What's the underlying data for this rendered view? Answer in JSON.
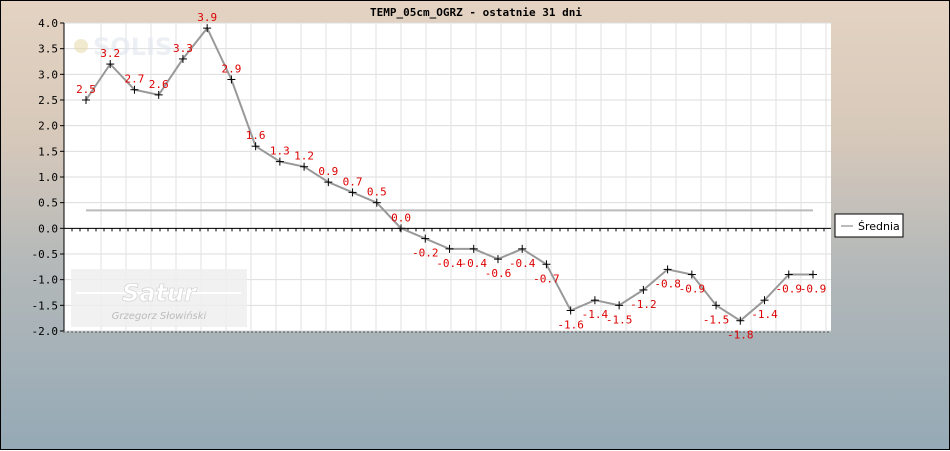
{
  "chart_data": {
    "type": "line",
    "title": "TEMP_05cm_OGRZ - ostatnie 31 dni",
    "xlabel": "",
    "ylabel": "",
    "ylim": [
      -2.0,
      4.0
    ],
    "yticks": [
      4.0,
      3.5,
      3.0,
      2.5,
      2.0,
      1.5,
      1.0,
      0.5,
      0.0,
      -0.5,
      -1.0,
      -1.5,
      -2.0
    ],
    "ytick_labels": [
      "4.0",
      "3.5",
      "3.0",
      "2.5",
      "2.0",
      "1.5",
      "1.0",
      "0.5",
      "0.0",
      "-0.5",
      "-1.0",
      "-1.5",
      "-2.0"
    ],
    "grid": true,
    "legend_position": "right",
    "series": [
      {
        "values": [
          2.5,
          3.2,
          2.7,
          2.6,
          3.3,
          3.9,
          2.9,
          1.6,
          1.3,
          1.2,
          0.9,
          0.7,
          0.5,
          0.0,
          -0.2,
          -0.4,
          -0.4,
          -0.6,
          -0.4,
          -0.7,
          -1.6,
          -1.4,
          -1.5,
          -1.2,
          -0.8,
          -0.9,
          -1.5,
          -1.8,
          -1.4,
          -0.9,
          -0.9
        ],
        "labels": [
          "2.5",
          "3.2",
          "2.7",
          "2.6",
          "3.3",
          "3.9",
          "2.9",
          "1.6",
          "1.3",
          "1.2",
          "0.9",
          "0.7",
          "0.5",
          "0.0",
          "-0.2",
          "-0.4",
          "-0.4",
          "-0.6",
          "-0.4",
          "-0.7",
          "-1.6",
          "-1.4",
          "-1.5",
          "-1.2",
          "-0.8",
          "-0.9",
          "-1.5",
          "-1.8",
          "-1.4",
          "-0.9",
          "-0.9"
        ],
        "color": "#999999",
        "marker_color": "#000000",
        "label_color": "#dd0000"
      },
      {
        "name": "Średnia",
        "value": 0.35,
        "color": "#bbbbbb"
      }
    ]
  },
  "watermarks": {
    "logo_top": "SOLIS",
    "logo_bottom": "Satur",
    "author": "Grzegorz Słowiński"
  }
}
